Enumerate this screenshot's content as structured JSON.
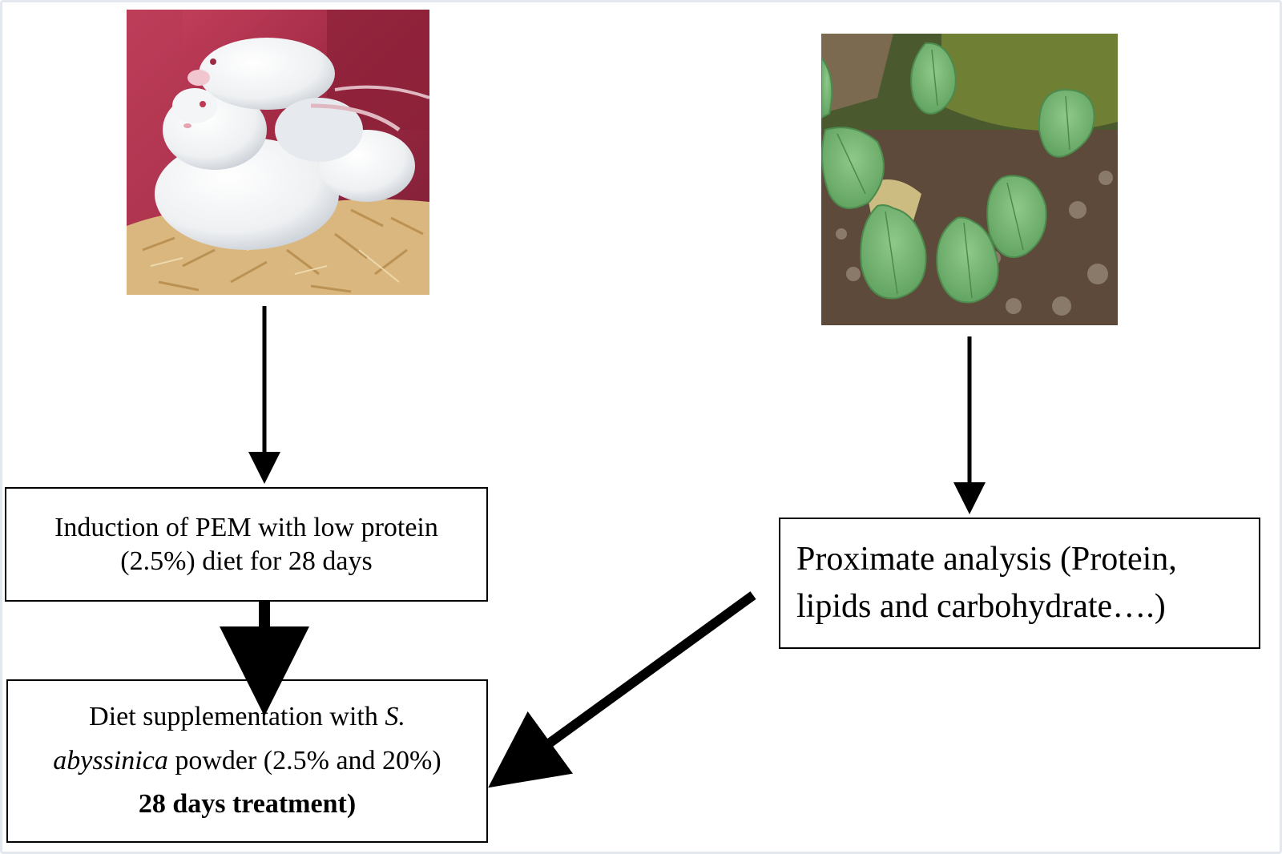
{
  "boxes": {
    "induction": {
      "line1": "Induction of PEM with low protein",
      "line2": "(2.5%) diet for 28 days"
    },
    "diet": {
      "line1_a": "Diet supplementation with ",
      "line1_b": "S.",
      "line2_a": "abyssinica",
      "line2_b": " powder (2.5% and 20%)",
      "line3": "28 days treatment)"
    },
    "proximate": {
      "line1": "Proximate analysis (Protein,",
      "line2": "lipids and carbohydrate….)"
    }
  },
  "photos": {
    "left": "rats-photo",
    "right": "plant-leaves-photo"
  },
  "colors": {
    "border": "#000000",
    "background": "#ffffff",
    "frame": "#e3e8ee"
  }
}
